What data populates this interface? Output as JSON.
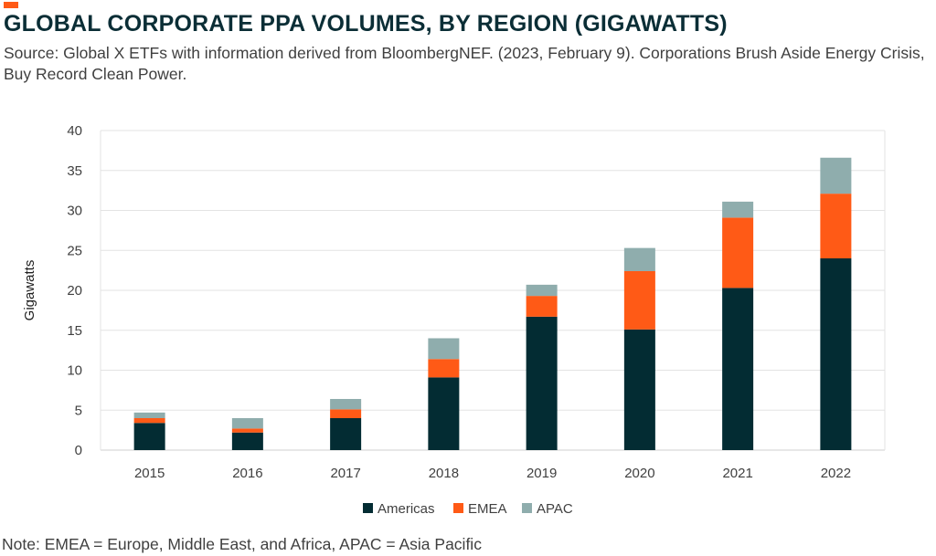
{
  "header": {
    "title": "GLOBAL CORPORATE PPA VOLUMES, BY REGION (GIGAWATTS)",
    "source": "Source: Global X ETFs with information derived from BloombergNEF. (2023, February 9). Corporations Brush Aside Energy Crisis, Buy Record Clean Power."
  },
  "footer": {
    "note": "Note: EMEA = Europe, Middle East, and Africa, APAC = Asia Pacific"
  },
  "colors": {
    "accent": "#ff5a16",
    "title": "#0b2e36"
  },
  "chart_data": {
    "type": "bar",
    "stacked": true,
    "categories": [
      "2015",
      "2016",
      "2017",
      "2018",
      "2019",
      "2020",
      "2021",
      "2022"
    ],
    "series": [
      {
        "name": "Americas",
        "color": "#032c33",
        "values": [
          3.4,
          2.2,
          4.0,
          9.1,
          16.7,
          15.1,
          20.3,
          24.0
        ]
      },
      {
        "name": "EMEA",
        "color": "#ff5a16",
        "values": [
          0.6,
          0.5,
          1.1,
          2.3,
          2.6,
          7.3,
          8.8,
          8.1
        ]
      },
      {
        "name": "APAC",
        "color": "#8fadad",
        "values": [
          0.7,
          1.3,
          1.3,
          2.6,
          1.4,
          2.9,
          2.0,
          4.5
        ]
      }
    ],
    "ylabel": "Gigawatts",
    "xlabel": "",
    "ylim": [
      0,
      40
    ],
    "yticks": [
      0,
      5,
      10,
      15,
      20,
      25,
      30,
      35,
      40
    ],
    "grid": true,
    "legend_position": "bottom"
  }
}
